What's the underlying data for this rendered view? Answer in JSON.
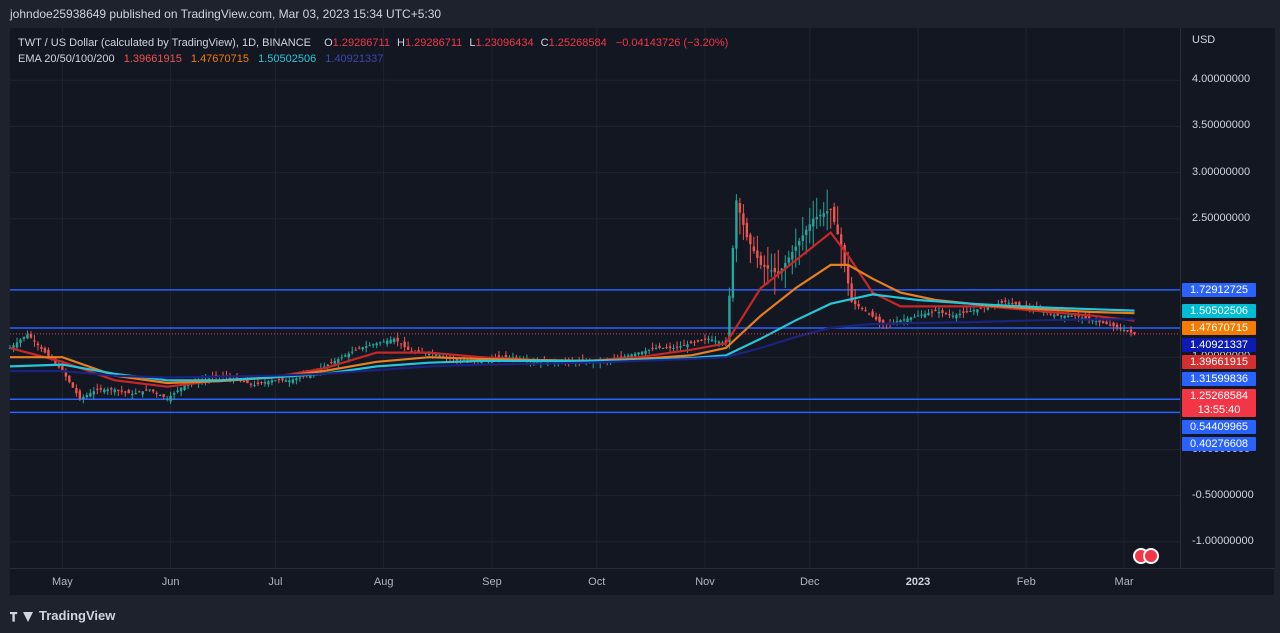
{
  "header": {
    "publisher": "johndoe25938649 published on TradingView.com, Mar 03, 2023 15:34 UTC+5:30"
  },
  "legend": {
    "symbol": "TWT / US Dollar (calculated by TradingView), 1D, BINANCE",
    "open_key": "O",
    "open": "1.29286711",
    "high_key": "H",
    "high": "1.29286711",
    "low_key": "L",
    "low": "1.23096434",
    "close_key": "C",
    "close": "1.25268584",
    "change": "−0.04143726 (−3.20%)",
    "ema_label": "EMA 20/50/100/200",
    "ema20": "1.39661915",
    "ema50": "1.47670715",
    "ema100": "1.50502506",
    "ema200": "1.40921337"
  },
  "colors": {
    "up": "#26a69a",
    "down": "#ef5350",
    "ema20": "#c62828",
    "ema50": "#e67e22",
    "ema100": "#26c6da",
    "ema200": "#1a237e",
    "hline": "#2962ff",
    "price": "#f23645"
  },
  "chart_data": {
    "type": "line",
    "title": "TWT / US Dollar (calculated by TradingView), 1D, BINANCE",
    "currency": "USD",
    "ylim": [
      -1.25,
      4.6
    ],
    "y_ticks": [
      4.0,
      3.5,
      3.0,
      2.5,
      1.0,
      0.0,
      -0.5,
      -1.0
    ],
    "y_tick_labels": [
      "4.00000000",
      "3.50000000",
      "3.00000000",
      "2.50000000",
      "1.00000000",
      "0.00000000",
      "-0.50000000",
      "-1.00000000"
    ],
    "x_labels": [
      {
        "label": "May",
        "x": 30,
        "bold": false
      },
      {
        "label": "Jun",
        "x": 61,
        "bold": false
      },
      {
        "label": "Jul",
        "x": 91,
        "bold": false
      },
      {
        "label": "Aug",
        "x": 122,
        "bold": false
      },
      {
        "label": "Sep",
        "x": 153,
        "bold": false
      },
      {
        "label": "Oct",
        "x": 183,
        "bold": false
      },
      {
        "label": "Nov",
        "x": 214,
        "bold": false
      },
      {
        "label": "Dec",
        "x": 244,
        "bold": false
      },
      {
        "label": "2023",
        "x": 275,
        "bold": true
      },
      {
        "label": "Feb",
        "x": 306,
        "bold": false
      },
      {
        "label": "Mar",
        "x": 334,
        "bold": false
      }
    ],
    "x_range": [
      15,
      340
    ],
    "horizontal_levels": [
      1.72912725,
      1.31599836,
      0.54409965,
      0.40276608
    ],
    "price_tags": [
      {
        "value": 1.72912725,
        "label": "1.72912725",
        "color": "#2962ff"
      },
      {
        "value": 1.50502506,
        "label": "1.50502506",
        "color": "#00bcd4"
      },
      {
        "value": 1.47670715,
        "label": "1.47670715",
        "color": "#f57c00"
      },
      {
        "value": 1.40921337,
        "label": "1.40921337",
        "color": "#0d1bb5"
      },
      {
        "value": 1.39661915,
        "label": "1.39661915",
        "color": "#d32f2f"
      },
      {
        "value": 1.31599836,
        "label": "1.31599836",
        "color": "#2962ff"
      },
      {
        "value": 1.25268584,
        "label": "1.25268584",
        "sub": "13:55:40",
        "color": "#f23645"
      },
      {
        "value": 0.54409965,
        "label": "0.54409965",
        "color": "#2962ff"
      },
      {
        "value": 0.40276608,
        "label": "0.40276608",
        "color": "#2962ff"
      }
    ],
    "price_anchors": [
      [
        15,
        1.1
      ],
      [
        20,
        1.25
      ],
      [
        25,
        1.05
      ],
      [
        30,
        0.85
      ],
      [
        35,
        0.55
      ],
      [
        40,
        0.65
      ],
      [
        45,
        0.65
      ],
      [
        50,
        0.6
      ],
      [
        55,
        0.65
      ],
      [
        60,
        0.55
      ],
      [
        65,
        0.7
      ],
      [
        70,
        0.75
      ],
      [
        75,
        0.8
      ],
      [
        80,
        0.75
      ],
      [
        85,
        0.7
      ],
      [
        90,
        0.75
      ],
      [
        95,
        0.75
      ],
      [
        100,
        0.8
      ],
      [
        105,
        0.9
      ],
      [
        110,
        1.0
      ],
      [
        115,
        1.1
      ],
      [
        120,
        1.15
      ],
      [
        125,
        1.2
      ],
      [
        130,
        1.05
      ],
      [
        135,
        1.05
      ],
      [
        140,
        1.0
      ],
      [
        145,
        0.95
      ],
      [
        150,
        0.95
      ],
      [
        155,
        1.0
      ],
      [
        160,
        1.0
      ],
      [
        165,
        0.95
      ],
      [
        170,
        0.95
      ],
      [
        175,
        0.95
      ],
      [
        180,
        0.95
      ],
      [
        185,
        0.95
      ],
      [
        190,
        1.0
      ],
      [
        195,
        1.05
      ],
      [
        200,
        1.1
      ],
      [
        205,
        1.1
      ],
      [
        210,
        1.15
      ],
      [
        215,
        1.2
      ],
      [
        220,
        1.15
      ],
      [
        223,
        2.7
      ],
      [
        226,
        2.3
      ],
      [
        230,
        2.0
      ],
      [
        235,
        1.9
      ],
      [
        240,
        2.2
      ],
      [
        245,
        2.5
      ],
      [
        250,
        2.6
      ],
      [
        253,
        2.2
      ],
      [
        256,
        1.6
      ],
      [
        260,
        1.5
      ],
      [
        265,
        1.35
      ],
      [
        270,
        1.4
      ],
      [
        275,
        1.45
      ],
      [
        280,
        1.5
      ],
      [
        285,
        1.45
      ],
      [
        290,
        1.5
      ],
      [
        295,
        1.55
      ],
      [
        300,
        1.6
      ],
      [
        305,
        1.55
      ],
      [
        310,
        1.5
      ],
      [
        315,
        1.45
      ],
      [
        320,
        1.45
      ],
      [
        325,
        1.4
      ],
      [
        330,
        1.35
      ],
      [
        335,
        1.28
      ],
      [
        337,
        1.253
      ]
    ],
    "series": [
      {
        "name": "EMA 20",
        "color": "#c62828",
        "values": [
          [
            15,
            1.1
          ],
          [
            30,
            0.95
          ],
          [
            45,
            0.75
          ],
          [
            60,
            0.68
          ],
          [
            75,
            0.75
          ],
          [
            90,
            0.78
          ],
          [
            105,
            0.88
          ],
          [
            120,
            1.05
          ],
          [
            135,
            1.05
          ],
          [
            150,
            1.0
          ],
          [
            165,
            0.97
          ],
          [
            180,
            0.96
          ],
          [
            195,
            1.0
          ],
          [
            210,
            1.08
          ],
          [
            220,
            1.15
          ],
          [
            230,
            1.75
          ],
          [
            240,
            2.05
          ],
          [
            250,
            2.35
          ],
          [
            255,
            2.1
          ],
          [
            262,
            1.7
          ],
          [
            270,
            1.55
          ],
          [
            280,
            1.55
          ],
          [
            295,
            1.55
          ],
          [
            310,
            1.5
          ],
          [
            325,
            1.45
          ],
          [
            337,
            1.397
          ]
        ]
      },
      {
        "name": "EMA 50",
        "color": "#e67e22",
        "values": [
          [
            15,
            1.0
          ],
          [
            30,
            1.0
          ],
          [
            45,
            0.8
          ],
          [
            60,
            0.72
          ],
          [
            75,
            0.74
          ],
          [
            90,
            0.78
          ],
          [
            105,
            0.85
          ],
          [
            120,
            0.95
          ],
          [
            135,
            1.0
          ],
          [
            150,
            0.98
          ],
          [
            165,
            0.97
          ],
          [
            180,
            0.96
          ],
          [
            195,
            0.98
          ],
          [
            210,
            1.02
          ],
          [
            220,
            1.1
          ],
          [
            230,
            1.45
          ],
          [
            240,
            1.75
          ],
          [
            250,
            2.0
          ],
          [
            255,
            2.0
          ],
          [
            262,
            1.85
          ],
          [
            270,
            1.7
          ],
          [
            280,
            1.62
          ],
          [
            295,
            1.56
          ],
          [
            310,
            1.52
          ],
          [
            325,
            1.49
          ],
          [
            337,
            1.477
          ]
        ]
      },
      {
        "name": "EMA 100",
        "color": "#26c6da",
        "values": [
          [
            15,
            0.9
          ],
          [
            30,
            0.92
          ],
          [
            45,
            0.82
          ],
          [
            60,
            0.75
          ],
          [
            75,
            0.75
          ],
          [
            90,
            0.78
          ],
          [
            105,
            0.82
          ],
          [
            120,
            0.9
          ],
          [
            135,
            0.94
          ],
          [
            150,
            0.96
          ],
          [
            165,
            0.96
          ],
          [
            180,
            0.96
          ],
          [
            195,
            0.97
          ],
          [
            210,
            0.99
          ],
          [
            220,
            1.02
          ],
          [
            230,
            1.2
          ],
          [
            240,
            1.4
          ],
          [
            250,
            1.58
          ],
          [
            262,
            1.68
          ],
          [
            275,
            1.62
          ],
          [
            290,
            1.58
          ],
          [
            310,
            1.54
          ],
          [
            325,
            1.52
          ],
          [
            337,
            1.505
          ]
        ]
      },
      {
        "name": "EMA 200",
        "color": "#1a237e",
        "values": [
          [
            15,
            0.85
          ],
          [
            30,
            0.85
          ],
          [
            45,
            0.8
          ],
          [
            60,
            0.78
          ],
          [
            75,
            0.79
          ],
          [
            90,
            0.8
          ],
          [
            105,
            0.82
          ],
          [
            120,
            0.86
          ],
          [
            135,
            0.9
          ],
          [
            150,
            0.92
          ],
          [
            165,
            0.93
          ],
          [
            180,
            0.94
          ],
          [
            195,
            0.96
          ],
          [
            210,
            0.98
          ],
          [
            220,
            1.0
          ],
          [
            230,
            1.1
          ],
          [
            240,
            1.22
          ],
          [
            250,
            1.32
          ],
          [
            262,
            1.36
          ],
          [
            275,
            1.37
          ],
          [
            290,
            1.38
          ],
          [
            310,
            1.4
          ],
          [
            325,
            1.41
          ],
          [
            337,
            1.409
          ]
        ]
      }
    ]
  }
}
